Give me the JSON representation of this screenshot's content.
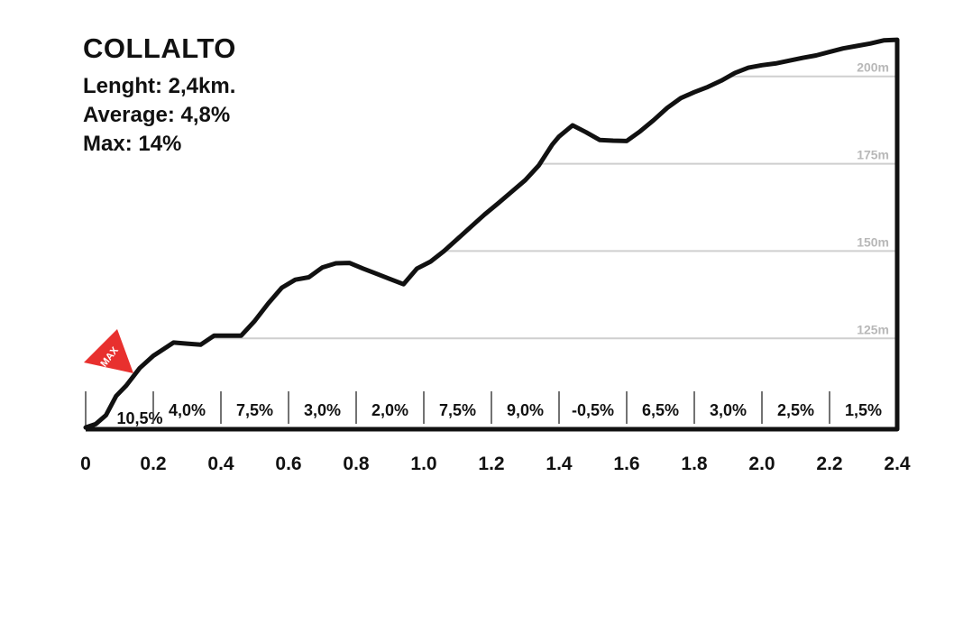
{
  "header": {
    "title": "COLLALTO",
    "length": "Lenght: 2,4km.",
    "average": "Average: 4,8%",
    "max": "Max: 14%"
  },
  "max_marker": {
    "label": "MAX",
    "at_km": 0.14,
    "color": "#e8302e"
  },
  "chart_data": {
    "type": "area",
    "title": "COLLALTO",
    "xlabel": "",
    "ylabel": "",
    "xlim": [
      0,
      2.4
    ],
    "ylim": [
      99,
      210
    ],
    "x_ticks": [
      "0",
      "0.2",
      "0.4",
      "0.6",
      "0.8",
      "1.0",
      "1.2",
      "1.4",
      "1.6",
      "1.8",
      "2.0",
      "2.2",
      "2.4"
    ],
    "y_gridlines": [
      {
        "value": 125,
        "label": "125m"
      },
      {
        "value": 150,
        "label": "150m"
      },
      {
        "value": 175,
        "label": "175m"
      },
      {
        "value": 200,
        "label": "200m"
      }
    ],
    "segments": [
      {
        "start": 0.0,
        "end": 0.2,
        "grade": "10,5%"
      },
      {
        "start": 0.2,
        "end": 0.4,
        "grade": "4,0%"
      },
      {
        "start": 0.4,
        "end": 0.6,
        "grade": "7,5%"
      },
      {
        "start": 0.6,
        "end": 0.8,
        "grade": "3,0%"
      },
      {
        "start": 0.8,
        "end": 1.0,
        "grade": "2,0%"
      },
      {
        "start": 1.0,
        "end": 1.2,
        "grade": "7,5%"
      },
      {
        "start": 1.2,
        "end": 1.4,
        "grade": "9,0%"
      },
      {
        "start": 1.4,
        "end": 1.6,
        "grade": "-0,5%"
      },
      {
        "start": 1.6,
        "end": 1.8,
        "grade": "6,5%"
      },
      {
        "start": 1.8,
        "end": 2.0,
        "grade": "3,0%"
      },
      {
        "start": 2.0,
        "end": 2.2,
        "grade": "2,5%"
      },
      {
        "start": 2.2,
        "end": 2.4,
        "grade": "1,5%"
      }
    ],
    "elevation_profile": [
      [
        0.0,
        99.5
      ],
      [
        0.03,
        100.5
      ],
      [
        0.06,
        103
      ],
      [
        0.09,
        108.5
      ],
      [
        0.12,
        111.5
      ],
      [
        0.16,
        116.5
      ],
      [
        0.2,
        120
      ],
      [
        0.26,
        123.8
      ],
      [
        0.3,
        123.5
      ],
      [
        0.34,
        123.2
      ],
      [
        0.38,
        125.8
      ],
      [
        0.46,
        125.8
      ],
      [
        0.5,
        130
      ],
      [
        0.54,
        135
      ],
      [
        0.58,
        139.5
      ],
      [
        0.62,
        141.8
      ],
      [
        0.66,
        142.5
      ],
      [
        0.7,
        145.3
      ],
      [
        0.74,
        146.5
      ],
      [
        0.78,
        146.6
      ],
      [
        0.82,
        145
      ],
      [
        0.86,
        143.5
      ],
      [
        0.9,
        142
      ],
      [
        0.94,
        140.5
      ],
      [
        0.98,
        145
      ],
      [
        1.02,
        147
      ],
      [
        1.06,
        150
      ],
      [
        1.1,
        153.5
      ],
      [
        1.14,
        157
      ],
      [
        1.18,
        160.5
      ],
      [
        1.22,
        163.7
      ],
      [
        1.26,
        167
      ],
      [
        1.3,
        170.3
      ],
      [
        1.34,
        174.5
      ],
      [
        1.38,
        180.5
      ],
      [
        1.4,
        182.8
      ],
      [
        1.44,
        186
      ],
      [
        1.48,
        184
      ],
      [
        1.52,
        181.8
      ],
      [
        1.56,
        181.6
      ],
      [
        1.6,
        181.5
      ],
      [
        1.64,
        184.3
      ],
      [
        1.68,
        187.5
      ],
      [
        1.72,
        191
      ],
      [
        1.76,
        193.8
      ],
      [
        1.8,
        195.5
      ],
      [
        1.84,
        197
      ],
      [
        1.88,
        198.8
      ],
      [
        1.92,
        201
      ],
      [
        1.96,
        202.5
      ],
      [
        2.0,
        203.2
      ],
      [
        2.04,
        203.7
      ],
      [
        2.08,
        204.5
      ],
      [
        2.12,
        205.3
      ],
      [
        2.16,
        206
      ],
      [
        2.2,
        207
      ],
      [
        2.24,
        208
      ],
      [
        2.28,
        208.7
      ],
      [
        2.32,
        209.4
      ],
      [
        2.36,
        210.3
      ],
      [
        2.4,
        210.5
      ]
    ]
  }
}
